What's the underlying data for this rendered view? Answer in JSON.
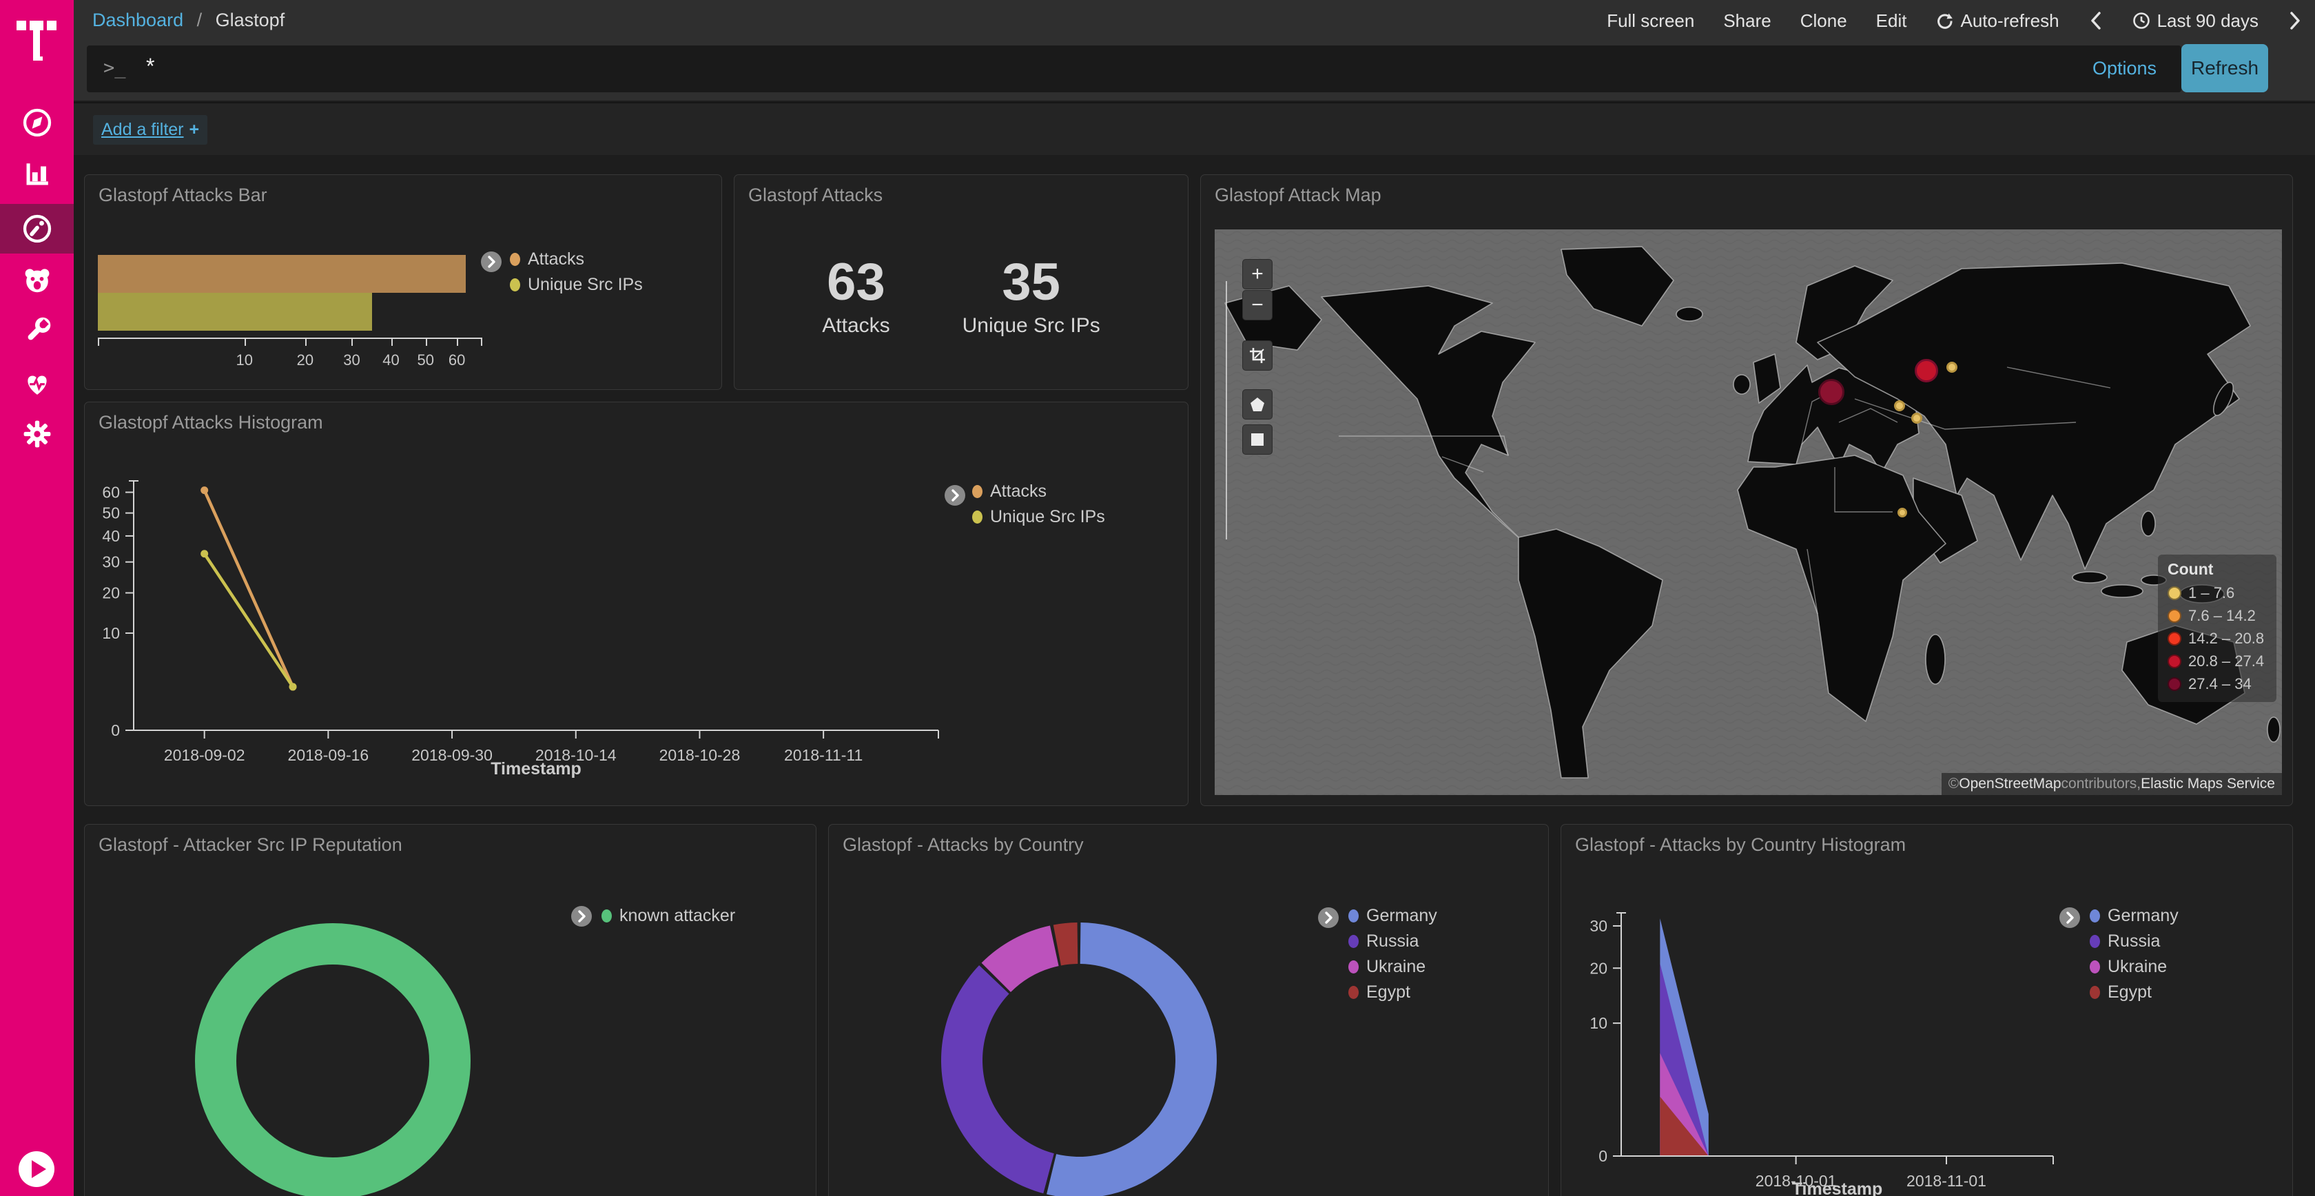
{
  "colors": {
    "magenta": "#e20074",
    "magenta_active": "#8c1150",
    "page_bg": "#1d1d1d",
    "topbar_bg": "#2f2f2f",
    "panel_bg": "#212121",
    "panel_border": "#383838",
    "input_bg": "#1a1a1a",
    "link": "#54b2e0",
    "refresh_btn": "#4da1c0",
    "title_text": "#9a9a9a",
    "axis_text": "#c7c7c7",
    "legend_text": "#cccccc",
    "metric_text": "#d6d6d6",
    "axis_line": "#d4d4d4",
    "ocean": "#6a6a6a",
    "land": "#0c0c0c",
    "border_line": "#c9c9c9"
  },
  "sidebar": {
    "logo_icon": "t-mobile-logo",
    "item_icons": [
      "compass-discover",
      "bar-chart-visualize",
      "gauge-dashboard",
      "bear-face",
      "wrench-dev-tools",
      "heartbeat-monitoring",
      "gear-management"
    ],
    "active_icon": "gauge-dashboard",
    "expand_icon": "play-circle"
  },
  "topnav": {
    "breadcrumb_link": "Dashboard",
    "breadcrumb_sep": "/",
    "breadcrumb_current": "Glastopf",
    "fullscreen": "Full screen",
    "share": "Share",
    "clone": "Clone",
    "edit": "Edit",
    "auto_refresh": "Auto-refresh",
    "time_range": "Last 90 days"
  },
  "querybar": {
    "prompt": ">_",
    "value": "*",
    "options": "Options",
    "refresh": "Refresh"
  },
  "filterbar": {
    "add_filter": "Add a filter",
    "plus": "+"
  },
  "panels": {
    "bar": "Glastopf Attacks Bar",
    "metric": "Glastopf Attacks",
    "map": "Glastopf Attack Map",
    "histogram": "Glastopf Attacks Histogram",
    "reputation": "Glastopf - Attacker Src IP Reputation",
    "country": "Glastopf - Attacks by Country",
    "country_histogram": "Glastopf - Attacks by Country Histogram"
  },
  "chart_data": [
    {
      "id": "attacks_bar",
      "type": "bar",
      "title": "Glastopf Attacks Bar",
      "orientation": "horizontal",
      "xscale": "sqrt",
      "xlim": [
        0,
        63
      ],
      "xticks": [
        10,
        20,
        30,
        40,
        50,
        60
      ],
      "series": [
        {
          "name": "Attacks",
          "value": 63,
          "color": "#daa05d"
        },
        {
          "name": "Unique Src IPs",
          "value": 35,
          "color": "#cbc24f"
        }
      ],
      "legend_position": "right"
    },
    {
      "id": "attacks_metric",
      "type": "metric",
      "title": "Glastopf Attacks",
      "metrics": [
        {
          "value": "63",
          "label": "Attacks"
        },
        {
          "value": "35",
          "label": "Unique Src IPs"
        }
      ]
    },
    {
      "id": "attack_map",
      "type": "map",
      "title": "Glastopf Attack Map",
      "legend_title": "Count",
      "legend": [
        {
          "range": "1 – 7.6",
          "color": "#ecc964"
        },
        {
          "range": "7.6 – 14.2",
          "color": "#f0963a"
        },
        {
          "range": "14.2 – 20.8",
          "color": "#f2371f"
        },
        {
          "range": "20.8 – 27.4",
          "color": "#c3142b"
        },
        {
          "range": "27.4 – 34",
          "color": "#7c0c2d"
        }
      ],
      "points": [
        {
          "place": "Germany",
          "fx": 0.578,
          "fy": 0.287,
          "r": 19,
          "color": "#8c1230",
          "stroke": "#550a20"
        },
        {
          "place": "Russia",
          "fx": 0.667,
          "fy": 0.25,
          "r": 17,
          "color": "#c3142b",
          "stroke": "#7d0d2d"
        },
        {
          "place": "Russia-east",
          "fx": 0.691,
          "fy": 0.244,
          "r": 8,
          "color": "#e6c268",
          "stroke": "#b99540"
        },
        {
          "place": "Ukraine-1",
          "fx": 0.642,
          "fy": 0.312,
          "r": 8,
          "color": "#e6c268",
          "stroke": "#b99540"
        },
        {
          "place": "Ukraine-2",
          "fx": 0.658,
          "fy": 0.334,
          "r": 8,
          "color": "#e6c268",
          "stroke": "#b99540"
        },
        {
          "place": "Egypt",
          "fx": 0.644,
          "fy": 0.501,
          "r": 7,
          "color": "#e6c268",
          "stroke": "#b99540"
        }
      ],
      "controls": {
        "zoom_in": "+",
        "zoom_out": "−",
        "tools": [
          "fit-data",
          "draw-polygon",
          "draw-rectangle"
        ]
      },
      "attribution": {
        "prefix": "© ",
        "link1": "OpenStreetMap",
        "middle": " contributors, ",
        "link2": "Elastic Maps Service"
      }
    },
    {
      "id": "attacks_histogram",
      "type": "line",
      "title": "Glastopf Attacks Histogram",
      "xlabel": "Timestamp",
      "yscale": "sqrt",
      "ylim": [
        0,
        63
      ],
      "yticks": [
        0,
        10,
        20,
        30,
        40,
        50,
        60
      ],
      "xticks": [
        "2018-09-02",
        "2018-09-16",
        "2018-09-30",
        "2018-10-14",
        "2018-10-28",
        "2018-11-11"
      ],
      "x_domain": [
        "2018-08-25",
        "2018-11-24"
      ],
      "series": [
        {
          "name": "Attacks",
          "color": "#daa05d",
          "points": [
            [
              "2018-09-02",
              61
            ],
            [
              "2018-09-12",
              2
            ]
          ]
        },
        {
          "name": "Unique Src IPs",
          "color": "#cbc24f",
          "points": [
            [
              "2018-09-02",
              33
            ],
            [
              "2018-09-12",
              2
            ]
          ]
        }
      ],
      "legend_position": "right"
    },
    {
      "id": "reputation_donut",
      "type": "pie",
      "donut": true,
      "title": "Glastopf - Attacker Src IP Reputation",
      "slices": [
        {
          "name": "known attacker",
          "value": 100,
          "color": "#57c17b"
        }
      ]
    },
    {
      "id": "country_donut",
      "type": "pie",
      "donut": true,
      "title": "Glastopf - Attacks by Country",
      "slices": [
        {
          "name": "Germany",
          "value": 34,
          "color": "#6f87d8"
        },
        {
          "name": "Russia",
          "value": 21,
          "color": "#663db8"
        },
        {
          "name": "Ukraine",
          "value": 6,
          "color": "#bc52bc"
        },
        {
          "name": "Egypt",
          "value": 2,
          "color": "#9e3533"
        }
      ]
    },
    {
      "id": "country_histogram",
      "type": "area",
      "title": "Glastopf - Attacks by Country Histogram",
      "xlabel": "Timestamp",
      "mode": "overlap",
      "yscale": "sqrt",
      "ylim": [
        0,
        32
      ],
      "yticks": [
        0,
        10,
        20,
        30
      ],
      "xticks": [
        "2018-10-01",
        "2018-11-01"
      ],
      "x_domain": [
        "2018-08-26",
        "2018-11-23"
      ],
      "series": [
        {
          "name": "Germany",
          "color": "#6f87d8",
          "points": [
            [
              "2018-09-03",
              32
            ],
            [
              "2018-09-13",
              1
            ]
          ]
        },
        {
          "name": "Russia",
          "color": "#663db8",
          "points": [
            [
              "2018-09-03",
              21
            ],
            [
              "2018-09-13",
              0
            ]
          ]
        },
        {
          "name": "Ukraine",
          "color": "#bc52bc",
          "points": [
            [
              "2018-09-03",
              6
            ],
            [
              "2018-09-13",
              0
            ]
          ]
        },
        {
          "name": "Egypt",
          "color": "#9e3533",
          "points": [
            [
              "2018-09-03",
              2
            ],
            [
              "2018-09-13",
              0
            ]
          ]
        }
      ]
    }
  ]
}
